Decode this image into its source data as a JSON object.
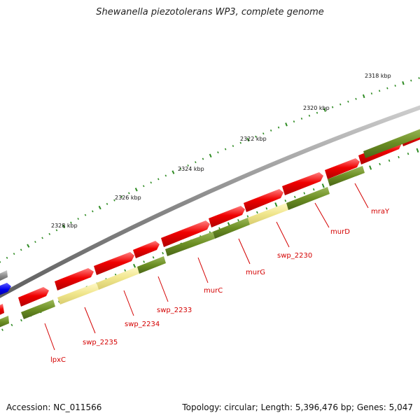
{
  "title": "Shewanella piezotolerans WP3, complete genome",
  "footer": {
    "accession": "Accession: NC_011566",
    "summary": "Topology: circular; Length: 5,396,476 bp; Genes: 5,047"
  },
  "colors": {
    "backbone": "#8a8a8a",
    "forward_gene": "#e60000",
    "reverse_gene": "#6b8e23",
    "highlight_gene": "#f0e68c",
    "blue_feature": "#0000ee",
    "tick": "#2e8b22",
    "label": "#d40000"
  },
  "kbp_labels": [
    "2318 kbp",
    "2320 kbp",
    "2322 kbp",
    "2324 kbp",
    "2326 kbp",
    "2328 kbp"
  ],
  "gene_labels": [
    "mraY",
    "murD",
    "swp_2230",
    "murG",
    "swp_2233",
    "murC",
    "swp_2234",
    "swp_2235",
    "lpxC"
  ]
}
